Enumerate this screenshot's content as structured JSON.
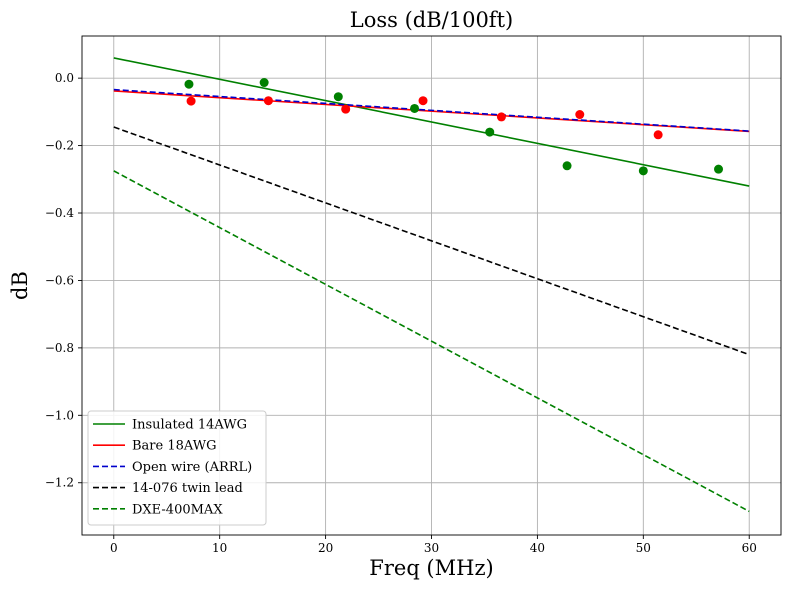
{
  "chart_data": {
    "type": "line",
    "title": "Loss (dB/100ft)",
    "xlabel": "Freq (MHz)",
    "ylabel": "dB",
    "xlim": [
      -3,
      63
    ],
    "ylim": [
      -1.355,
      0.125
    ],
    "xticks": [
      0,
      10,
      20,
      30,
      40,
      50,
      60
    ],
    "xtick_labels": [
      "0",
      "10",
      "20",
      "30",
      "40",
      "50",
      "60"
    ],
    "yticks": [
      0.0,
      -0.2,
      -0.4,
      -0.6,
      -0.8,
      -1.0,
      -1.2
    ],
    "ytick_labels": [
      "0.0",
      "−0.2",
      "−0.4",
      "−0.6",
      "−0.8",
      "−1.0",
      "−1.2"
    ],
    "grid": true,
    "legend_position": "lower-left",
    "series": [
      {
        "name": "Insulated 14AWG",
        "kind": "line",
        "style": "solid",
        "color": "#008000",
        "x": [
          0,
          60
        ],
        "y": [
          0.06,
          -0.32
        ]
      },
      {
        "name": "Bare 18AWG",
        "kind": "line",
        "style": "solid",
        "color": "#ff0000",
        "x": [
          0,
          60
        ],
        "y": [
          -0.038,
          -0.158
        ]
      },
      {
        "name": "Open wire (ARRL)",
        "kind": "line",
        "style": "dashed",
        "color": "#0000cc",
        "x": [
          0,
          60
        ],
        "y": [
          -0.034,
          -0.157
        ]
      },
      {
        "name": "14-076 twin lead",
        "kind": "line",
        "style": "dashed",
        "color": "#000000",
        "x": [
          0,
          60
        ],
        "y": [
          -0.145,
          -0.82
        ]
      },
      {
        "name": "DXE-400MAX",
        "kind": "line",
        "style": "dashed",
        "color": "#008000",
        "x": [
          0,
          60
        ],
        "y": [
          -0.275,
          -1.285
        ]
      }
    ],
    "scatter": [
      {
        "color": "#008000",
        "x": [
          7.1,
          14.2,
          21.2,
          28.4,
          35.5,
          42.8,
          50.0,
          57.1
        ],
        "y": [
          -0.018,
          -0.013,
          -0.055,
          -0.09,
          -0.16,
          -0.26,
          -0.275,
          -0.27
        ]
      },
      {
        "color": "#ff0000",
        "x": [
          7.3,
          14.6,
          21.9,
          29.2,
          36.6,
          44.0,
          51.4
        ],
        "y": [
          -0.068,
          -0.067,
          -0.092,
          -0.067,
          -0.115,
          -0.108,
          -0.168
        ]
      }
    ]
  }
}
